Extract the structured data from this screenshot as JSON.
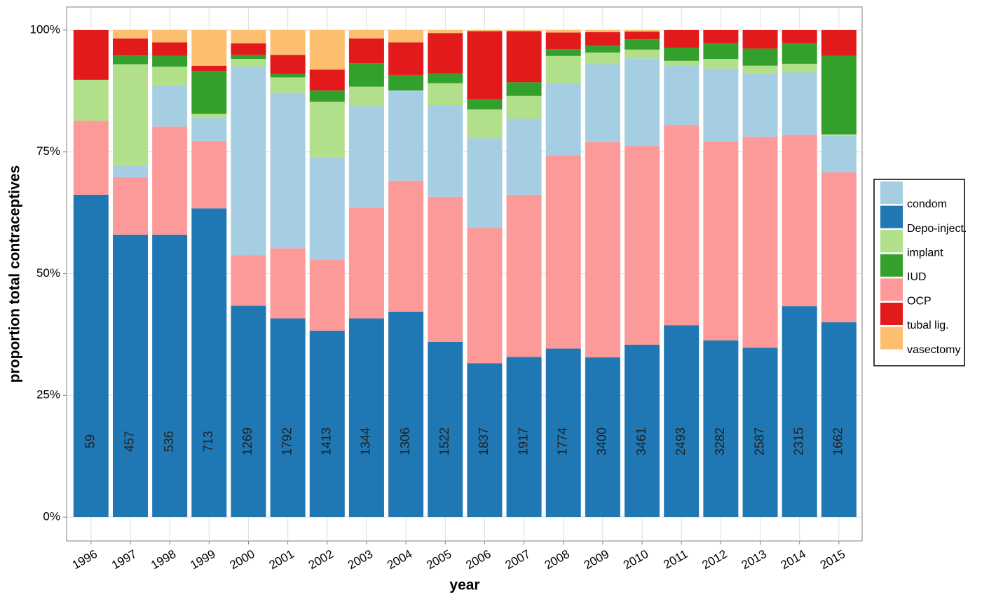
{
  "chart_data": {
    "type": "stacked-bar",
    "xlabel": "year",
    "ylabel": "proportion total contraceptives",
    "categories": [
      "1996",
      "1997",
      "1998",
      "1999",
      "2000",
      "2001",
      "2002",
      "2003",
      "2004",
      "2005",
      "2006",
      "2007",
      "2008",
      "2009",
      "2010",
      "2011",
      "2012",
      "2013",
      "2014",
      "2015"
    ],
    "counts": [
      59,
      457,
      536,
      713,
      1269,
      1792,
      1413,
      1344,
      1306,
      1522,
      1837,
      1917,
      1774,
      3400,
      3461,
      2493,
      3282,
      2587,
      2315,
      1662
    ],
    "ylim": [
      0,
      100
    ],
    "yticks": [
      {
        "value": 0,
        "label": "0%"
      },
      {
        "value": 25,
        "label": "25%"
      },
      {
        "value": 50,
        "label": "50%"
      },
      {
        "value": 75,
        "label": "75%"
      },
      {
        "value": 100,
        "label": "100%"
      }
    ],
    "grid": true,
    "series": [
      {
        "name": "condom",
        "color": "#a6cee3",
        "values": [
          0,
          2.4,
          8.3,
          4.8,
          38.7,
          31.9,
          21.0,
          20.9,
          18.5,
          18.8,
          18.4,
          15.6,
          14.7,
          16.0,
          18.0,
          12.3,
          15.0,
          13.1,
          12.8,
          7.5
        ]
      },
      {
        "name": "Depo-inject.",
        "color": "#1f78b4",
        "values": [
          66.2,
          58.0,
          58.0,
          63.4,
          43.4,
          40.8,
          38.3,
          40.8,
          42.2,
          36.0,
          31.6,
          32.9,
          34.6,
          32.8,
          35.4,
          39.4,
          36.3,
          34.8,
          43.3,
          40.0
        ]
      },
      {
        "name": "implant",
        "color": "#b2df8a",
        "values": [
          8.4,
          20.8,
          4.0,
          0.8,
          1.6,
          3.2,
          11.4,
          4.0,
          0,
          4.5,
          5.9,
          4.7,
          5.7,
          2.4,
          1.8,
          0.9,
          2.0,
          1.5,
          1.8,
          0.3
        ]
      },
      {
        "name": "IUD",
        "color": "#33a02c",
        "values": [
          0,
          1.8,
          2.2,
          8.8,
          0.8,
          0.7,
          2.3,
          4.8,
          3.2,
          2.0,
          2.1,
          2.8,
          1.4,
          1.4,
          2.1,
          2.7,
          3.2,
          3.5,
          4.2,
          16.1
        ]
      },
      {
        "name": "OCP",
        "color": "#fb9a99",
        "values": [
          15.2,
          11.8,
          22.2,
          13.8,
          10.4,
          14.4,
          14.6,
          22.7,
          26.9,
          29.8,
          27.8,
          33.3,
          39.7,
          44.2,
          40.8,
          41.1,
          40.8,
          43.3,
          35.2,
          30.8
        ]
      },
      {
        "name": "tubal lig.",
        "color": "#e31a1c",
        "values": [
          10.2,
          3.5,
          2.8,
          1.1,
          2.4,
          3.9,
          4.3,
          5.1,
          6.7,
          8.3,
          14.0,
          10.5,
          3.4,
          2.8,
          1.6,
          3.6,
          2.7,
          3.8,
          2.7,
          5.3
        ]
      },
      {
        "name": "vasectomy",
        "color": "#fdbf6f",
        "values": [
          0,
          1.7,
          2.5,
          7.3,
          2.7,
          5.1,
          8.1,
          1.7,
          2.5,
          0.6,
          0.2,
          0.2,
          0.5,
          0.4,
          0.3,
          0,
          0,
          0,
          0,
          0
        ]
      }
    ]
  }
}
